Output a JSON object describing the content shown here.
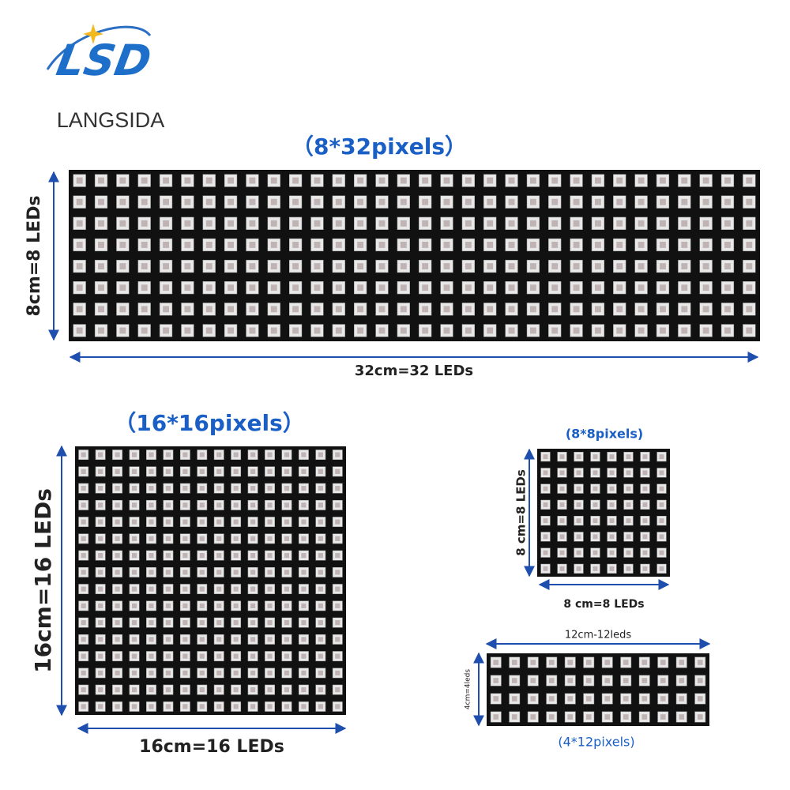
{
  "logo": {
    "mark": "LSD",
    "name": "LANGSIDA"
  },
  "panels": [
    {
      "title": "（8*32pixels）",
      "height_label": "8cm=8 LEDs",
      "width_label": "32cm=32 LEDs"
    },
    {
      "title": "（16*16pixels）",
      "height_label": "16cm=16 LEDs",
      "width_label": "16cm=16 LEDs"
    },
    {
      "title": "(8*8pixels)",
      "height_label": "8 cm=8 LEDs",
      "width_label": "8 cm=8 LEDs"
    },
    {
      "title": "(4*12pixels)",
      "height_label": "4cm=4leds",
      "width_label": "12cm-12leds"
    }
  ]
}
